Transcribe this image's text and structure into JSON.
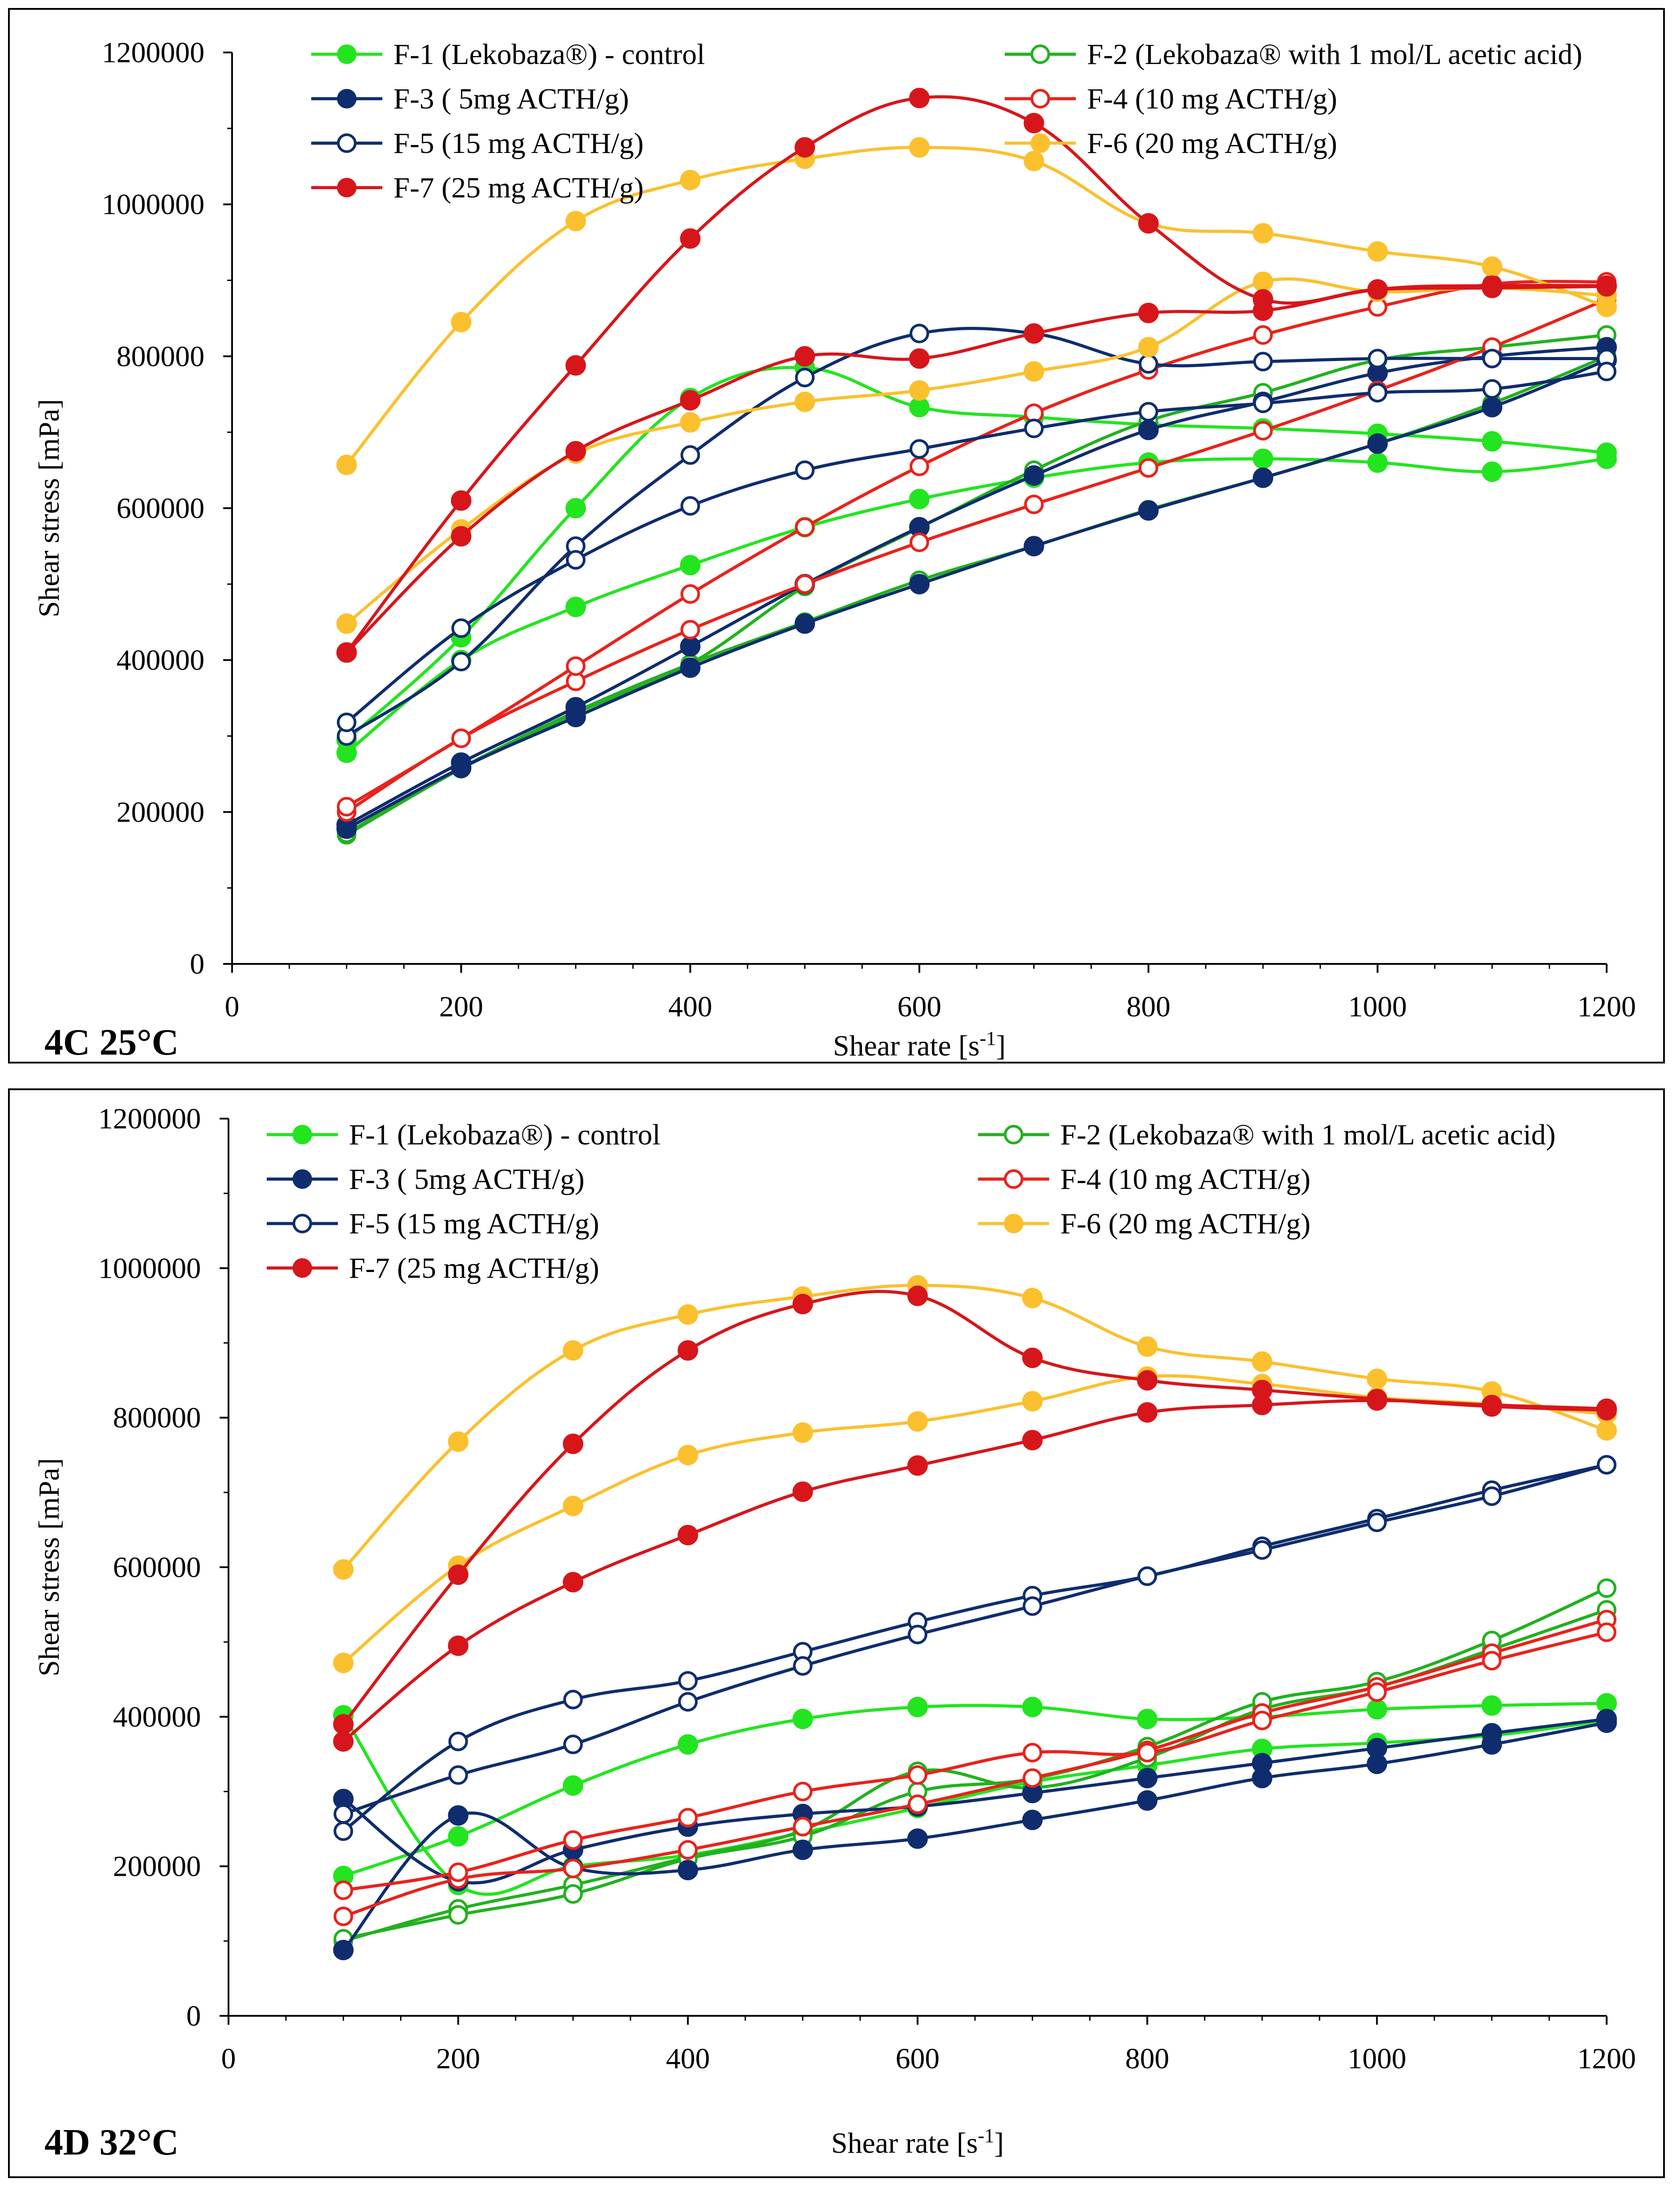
{
  "chart_data": [
    {
      "type": "line",
      "panel_label": "4C 25°C",
      "xlabel": "Shear rate [s",
      "xlabel_sup": "-1",
      "xlabel_end": "]",
      "ylabel": "Shear stress [mPa]",
      "xlim": [
        0,
        1200
      ],
      "ylim": [
        0,
        1200000
      ],
      "xticks": [
        0,
        200,
        400,
        600,
        800,
        1000,
        1200
      ],
      "yticks": [
        0,
        200000,
        400000,
        600000,
        800000,
        1000000,
        1200000
      ],
      "xtick_labels": [
        "0",
        "200",
        "400",
        "600",
        "800",
        "1000",
        "1200"
      ],
      "ytick_labels": [
        "0",
        "200000",
        "400000",
        "600000",
        "800000",
        "1000000",
        "1200000"
      ],
      "x": [
        100,
        200,
        300,
        400,
        500,
        600,
        700,
        800,
        900,
        1000,
        1100,
        1200
      ],
      "legend": [
        {
          "label": "F-1 (Lekobaza®) - control",
          "series": 0
        },
        {
          "label": "F-2 (Lekobaza® with 1 mol/L acetic acid)",
          "series": 1
        },
        {
          "label": "F-3 ( 5mg ACTH/g)",
          "series": 2
        },
        {
          "label": "F-4 (10 mg ACTH/g)",
          "series": 3
        },
        {
          "label": "F-5 (15 mg ACTH/g)",
          "series": 4
        },
        {
          "label": "F-6 (20 mg ACTH/g)",
          "series": 5
        },
        {
          "label": "F-7 (25 mg ACTH/g)",
          "series": 6
        }
      ],
      "series": [
        {
          "name": "F-1 (Lekobaza®) - control",
          "color": "#22e51f",
          "marker": "filled",
          "up": [
            295000,
            430000,
            600000,
            745000,
            785000,
            733000,
            720000,
            710000,
            705000,
            698000,
            688000,
            673000
          ],
          "down": [
            278000,
            400000,
            470000,
            525000,
            575000,
            612000,
            640000,
            660000,
            665000,
            660000,
            648000,
            665000
          ]
        },
        {
          "name": "F-2 (Lekobaza® with 1 mol/L acetic acid)",
          "color": "#22b11f",
          "marker": "open",
          "up": [
            172000,
            258000,
            332000,
            395000,
            450000,
            505000,
            550000,
            598000,
            640000,
            685000,
            738000,
            800000
          ],
          "down": [
            170000,
            257000,
            330000,
            395000,
            497000,
            574000,
            650000,
            715000,
            752000,
            795000,
            812000,
            828000
          ]
        },
        {
          "name": "F-3 ( 5mg ACTH/g)",
          "color": "#0f2d6e",
          "marker": "filled",
          "up": [
            178000,
            258000,
            325000,
            390000,
            448000,
            500000,
            550000,
            597000,
            640000,
            685000,
            733000,
            795000
          ],
          "down": [
            183000,
            265000,
            338000,
            418000,
            500000,
            575000,
            643000,
            703000,
            740000,
            778000,
            800000,
            812000
          ]
        },
        {
          "name": "F-4 (10 mg ACTH/g)",
          "color": "#e8231c",
          "marker": "open",
          "up": [
            207000,
            297000,
            392000,
            487000,
            575000,
            655000,
            725000,
            782000,
            828000,
            865000,
            895000,
            898000
          ],
          "down": [
            200000,
            297000,
            372000,
            440000,
            500000,
            555000,
            605000,
            653000,
            702000,
            755000,
            812000,
            875000
          ]
        },
        {
          "name": "F-5 (15 mg ACTH/g)",
          "color": "#0f2d6e",
          "marker": "open",
          "up": [
            318000,
            442000,
            532000,
            603000,
            650000,
            678000,
            705000,
            727000,
            738000,
            752000,
            757000,
            780000
          ],
          "down": [
            300000,
            398000,
            550000,
            670000,
            772000,
            830000,
            830000,
            790000,
            793000,
            797000,
            797000,
            797000
          ]
        },
        {
          "name": "F-6 (20 mg ACTH/g)",
          "color": "#fbc02d",
          "marker": "filled",
          "up": [
            657000,
            845000,
            978000,
            1032000,
            1060000,
            1075000,
            1057000,
            975000,
            962000,
            938000,
            918000,
            865000
          ],
          "down": [
            448000,
            572000,
            672000,
            713000,
            740000,
            755000,
            780000,
            812000,
            898000,
            885000,
            890000,
            880000
          ]
        },
        {
          "name": "F-7 (25 mg ACTH/g)",
          "color": "#d7161b",
          "marker": "filled",
          "up": [
            410000,
            610000,
            788000,
            955000,
            1075000,
            1140000,
            1107000,
            975000,
            875000,
            888000,
            890000,
            892000
          ],
          "down": [
            410000,
            563000,
            675000,
            742000,
            800000,
            797000,
            830000,
            857000,
            860000,
            888000,
            893000,
            893000
          ]
        }
      ]
    },
    {
      "type": "line",
      "panel_label": "4D 32°C",
      "xlabel": "Shear rate [s",
      "xlabel_sup": "-1",
      "xlabel_end": "]",
      "ylabel": "Shear stress [mPa]",
      "xlim": [
        0,
        1200
      ],
      "ylim": [
        0,
        1200000
      ],
      "xticks": [
        0,
        200,
        400,
        600,
        800,
        1000,
        1200
      ],
      "yticks": [
        0,
        200000,
        400000,
        600000,
        800000,
        1000000,
        1200000
      ],
      "xtick_labels": [
        "0",
        "200",
        "400",
        "600",
        "800",
        "1000",
        "1200"
      ],
      "ytick_labels": [
        "0",
        "200000",
        "400000",
        "600000",
        "800000",
        "1000000",
        "1200000"
      ],
      "x": [
        100,
        200,
        300,
        400,
        500,
        600,
        700,
        800,
        900,
        1000,
        1100,
        1200
      ],
      "legend": [
        {
          "label": "F-1 (Lekobaza®) - control",
          "series": 0
        },
        {
          "label": "F-2 (Lekobaza® with 1 mol/L acetic acid)",
          "series": 1
        },
        {
          "label": "F-3 ( 5mg ACTH/g)",
          "series": 2
        },
        {
          "label": "F-4 (10 mg ACTH/g)",
          "series": 3
        },
        {
          "label": "F-5 (15 mg ACTH/g)",
          "series": 4
        },
        {
          "label": "F-6 (20 mg ACTH/g)",
          "series": 5
        },
        {
          "label": "F-7 (25 mg ACTH/g)",
          "series": 6
        }
      ],
      "series": [
        {
          "name": "F-1 (Lekobaza®) - control",
          "color": "#22e51f",
          "marker": "filled",
          "up": [
            187000,
            240000,
            308000,
            363000,
            397000,
            413000,
            413000,
            397000,
            400000,
            410000,
            415000,
            418000
          ],
          "down": [
            402000,
            175000,
            200000,
            215000,
            245000,
            278000,
            313000,
            335000,
            357000,
            365000,
            375000,
            395000
          ]
        },
        {
          "name": "F-2 (Lekobaza® with 1 mol/L acetic acid)",
          "color": "#22b11f",
          "marker": "open",
          "up": [
            103000,
            135000,
            163000,
            210000,
            240000,
            300000,
            317000,
            360000,
            420000,
            447000,
            502000,
            572000
          ],
          "down": [
            100000,
            143000,
            175000,
            212000,
            248000,
            327000,
            305000,
            345000,
            410000,
            440000,
            490000,
            543000
          ]
        },
        {
          "name": "F-3 ( 5mg ACTH/g)",
          "color": "#0f2d6e",
          "marker": "filled",
          "up": [
            290000,
            180000,
            222000,
            253000,
            270000,
            280000,
            298000,
            318000,
            338000,
            358000,
            378000,
            397000
          ],
          "down": [
            88000,
            268000,
            198000,
            195000,
            222000,
            237000,
            262000,
            288000,
            318000,
            337000,
            363000,
            392000
          ]
        },
        {
          "name": "F-4 (10 mg ACTH/g)",
          "color": "#e8231c",
          "marker": "open",
          "up": [
            168000,
            192000,
            235000,
            265000,
            300000,
            322000,
            352000,
            352000,
            395000,
            433000,
            475000,
            513000
          ],
          "down": [
            133000,
            183000,
            197000,
            222000,
            253000,
            283000,
            318000,
            355000,
            405000,
            440000,
            485000,
            530000
          ]
        },
        {
          "name": "F-5 (15 mg ACTH/g)",
          "color": "#0f2d6e",
          "marker": "open",
          "up": [
            270000,
            322000,
            363000,
            420000,
            468000,
            510000,
            548000,
            588000,
            623000,
            660000,
            695000,
            737000
          ],
          "down": [
            247000,
            367000,
            423000,
            448000,
            487000,
            527000,
            562000,
            588000,
            628000,
            665000,
            703000,
            737000
          ]
        },
        {
          "name": "F-6 (20 mg ACTH/g)",
          "color": "#fbc02d",
          "marker": "filled",
          "up": [
            597000,
            768000,
            890000,
            938000,
            962000,
            977000,
            960000,
            895000,
            875000,
            852000,
            835000,
            783000
          ],
          "down": [
            472000,
            602000,
            682000,
            750000,
            780000,
            795000,
            822000,
            855000,
            845000,
            827000,
            818000,
            805000
          ]
        },
        {
          "name": "F-7 (25 mg ACTH/g)",
          "color": "#d7161b",
          "marker": "filled",
          "up": [
            390000,
            590000,
            765000,
            890000,
            952000,
            963000,
            880000,
            850000,
            837000,
            825000,
            815000,
            810000
          ],
          "down": [
            367000,
            495000,
            580000,
            643000,
            701000,
            736000,
            770000,
            807000,
            817000,
            823000,
            817000,
            812000
          ]
        }
      ]
    }
  ]
}
